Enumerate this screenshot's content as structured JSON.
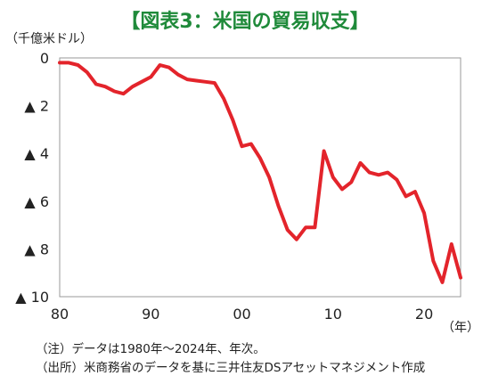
{
  "header": {
    "title": "【図表3：米国の貿易収支】"
  },
  "chart_data": {
    "type": "line",
    "title": "【図表3：米国の貿易収支】",
    "ylabel": "（千億米ドル）",
    "xlabel": "（年）",
    "ylim": [
      0,
      10
    ],
    "y_inverted": true,
    "y_ticks": [
      0,
      2,
      4,
      6,
      8,
      10
    ],
    "y_tick_labels": [
      "0",
      "▲ 2",
      "▲ 4",
      "▲ 6",
      "▲ 8",
      "▲ 10"
    ],
    "xlim": [
      1980,
      2024
    ],
    "x_ticks": [
      1980,
      1990,
      2000,
      2010,
      2020
    ],
    "x_tick_labels": [
      "80",
      "90",
      "00",
      "10",
      "20"
    ],
    "grid": false,
    "series": [
      {
        "color": "#e3242b",
        "x": [
          1980,
          1981,
          1982,
          1983,
          1984,
          1985,
          1986,
          1987,
          1988,
          1989,
          1990,
          1991,
          1992,
          1993,
          1994,
          1995,
          1996,
          1997,
          1998,
          1999,
          2000,
          2001,
          2002,
          2003,
          2004,
          2005,
          2006,
          2007,
          2008,
          2009,
          2010,
          2011,
          2012,
          2013,
          2014,
          2015,
          2016,
          2017,
          2018,
          2019,
          2020,
          2021,
          2022,
          2023,
          2024
        ],
        "y": [
          0.2,
          0.2,
          0.3,
          0.6,
          1.1,
          1.2,
          1.4,
          1.5,
          1.2,
          1.0,
          0.8,
          0.3,
          0.4,
          0.7,
          0.9,
          0.95,
          1.0,
          1.05,
          1.7,
          2.6,
          3.7,
          3.6,
          4.2,
          5.0,
          6.2,
          7.2,
          7.6,
          7.1,
          7.1,
          3.9,
          5.0,
          5.5,
          5.2,
          4.4,
          4.8,
          4.9,
          4.8,
          5.1,
          5.8,
          5.6,
          6.5,
          8.5,
          9.4,
          7.8,
          9.2
        ]
      }
    ],
    "notes": [
      "（注）データは1980年～2024年、年次。",
      "（出所）米商務省のデータを基に三井住友DSアセットマネジメント作成"
    ]
  },
  "colors": {
    "title": "#1f8a3a",
    "line": "#e3242b",
    "axis": "#9a9a9a",
    "text": "#222222"
  }
}
